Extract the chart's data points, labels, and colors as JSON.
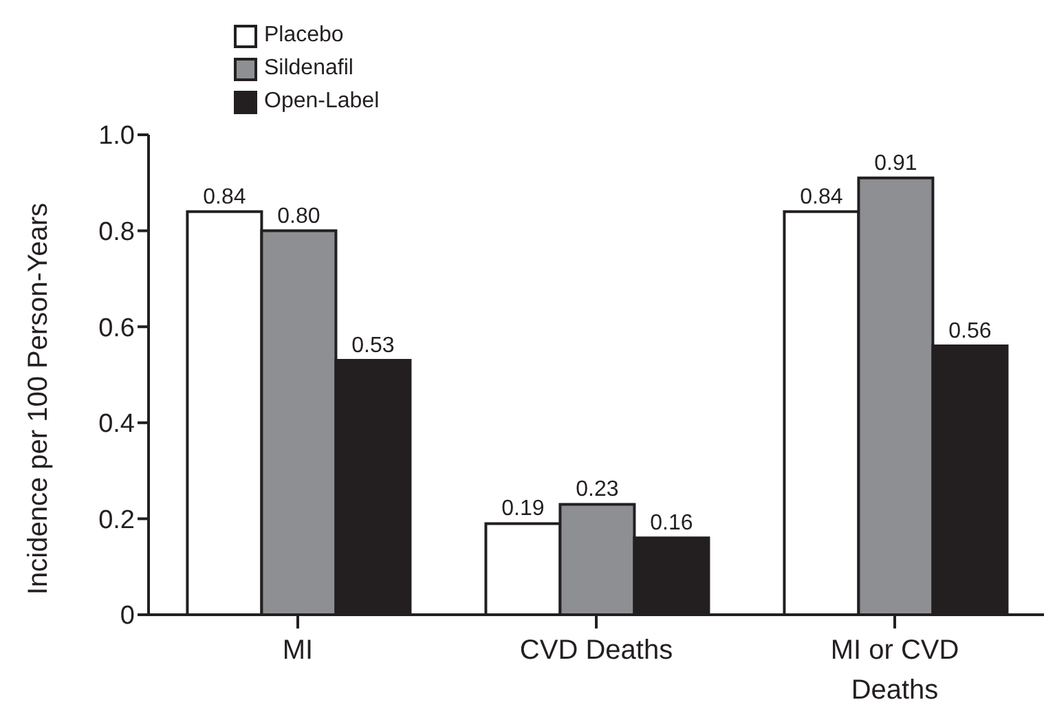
{
  "chart_data": {
    "type": "bar",
    "ylabel": "Incidence per 100 Person-Years",
    "categories": [
      "MI",
      "CVD Deaths",
      "MI or CVD Deaths"
    ],
    "series": [
      {
        "name": "Placebo",
        "color": "#ffffff",
        "values": [
          0.84,
          0.19,
          0.84
        ],
        "value_labels": [
          "0.84",
          "0.19",
          "0.84"
        ]
      },
      {
        "name": "Sildenafil",
        "color": "#8e8f92",
        "values": [
          0.8,
          0.23,
          0.91
        ],
        "value_labels": [
          "0.80",
          "0.23",
          "0.91"
        ]
      },
      {
        "name": "Open-Label",
        "color": "#231f20",
        "values": [
          0.53,
          0.16,
          0.56
        ],
        "value_labels": [
          "0.53",
          "0.16",
          "0.56"
        ]
      }
    ],
    "ylim": [
      0,
      1.0
    ],
    "yticks": [
      {
        "value": 0,
        "label": "0"
      },
      {
        "value": 0.2,
        "label": "0.2"
      },
      {
        "value": 0.4,
        "label": "0.4"
      },
      {
        "value": 0.6,
        "label": "0.6"
      },
      {
        "value": 0.8,
        "label": "0.8"
      },
      {
        "value": 1.0,
        "label": "1.0"
      }
    ],
    "legend": "top left",
    "grid": false
  }
}
